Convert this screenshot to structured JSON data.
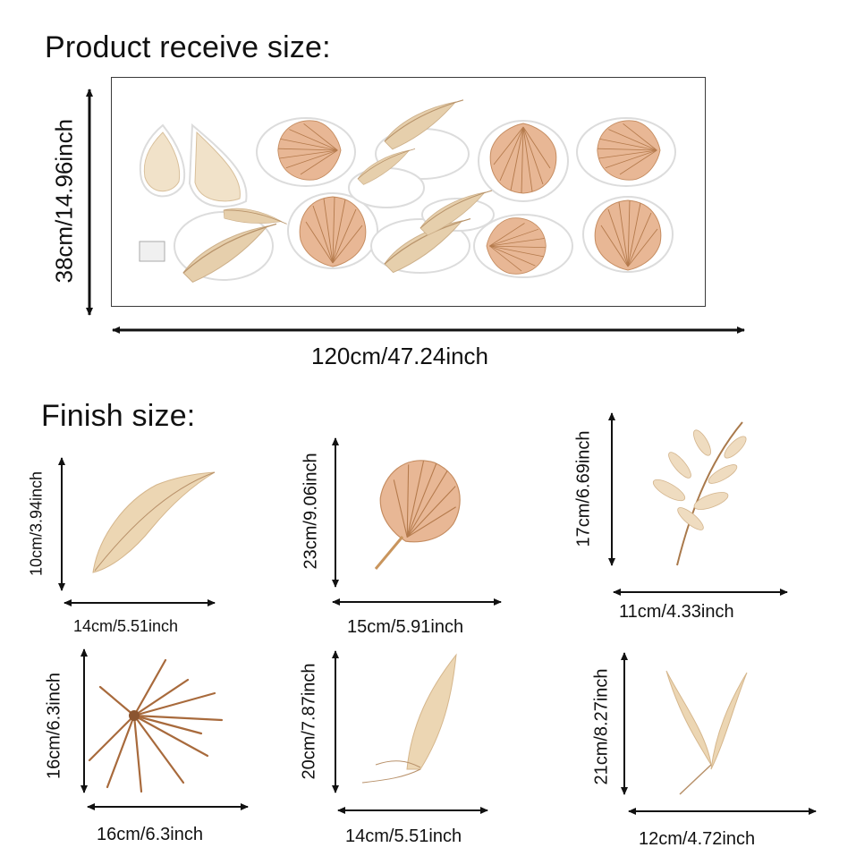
{
  "product_title": "Product receive size:",
  "finish_title": "Finish size:",
  "sheet": {
    "height_label": "38cm/14.96inch",
    "width_label": "120cm/47.24inch"
  },
  "pieces": [
    {
      "name": "pampas-feather",
      "height_label": "10cm/3.94inch",
      "width_label": "14cm/5.51inch"
    },
    {
      "name": "palm-spear-leaf",
      "height_label": "23cm/9.06inch",
      "width_label": "15cm/5.91inch"
    },
    {
      "name": "leafy-branch",
      "height_label": "17cm/6.69inch",
      "width_label": "11cm/4.33inch"
    },
    {
      "name": "fan-palm",
      "height_label": "16cm/6.3inch",
      "width_label": "16cm/6.3inch"
    },
    {
      "name": "pampas-wisp",
      "height_label": "20cm/7.87inch",
      "width_label": "14cm/5.51inch"
    },
    {
      "name": "double-pampas",
      "height_label": "21cm/8.27inch",
      "width_label": "12cm/4.72inch"
    }
  ],
  "colors": {
    "tan": "#d9b58f",
    "peach": "#e8b795",
    "brown": "#9c6b42",
    "cream": "#efdcc0"
  }
}
